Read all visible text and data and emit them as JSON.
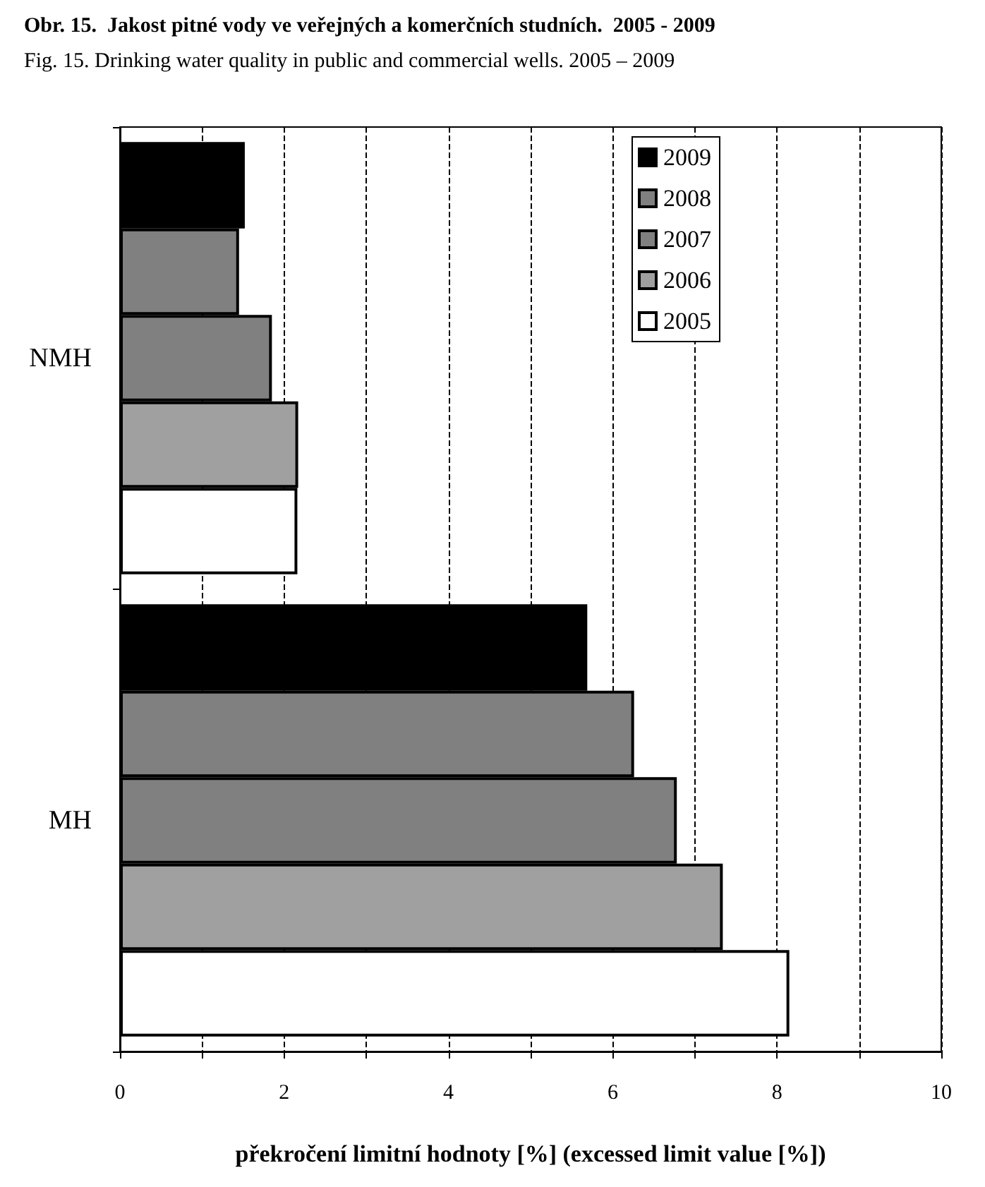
{
  "chart_data": {
    "type": "bar",
    "orientation": "horizontal",
    "title": "Obr. 15.  Jakost pitné vody ve veřejných a komerčních studních.  2005 - 2009",
    "subtitle": "Fig. 15. Drinking water quality in public and commercial wells. 2005 – 2009",
    "xlabel": "překročení limitní hodnoty [%] (excessed limit value [%])",
    "categories": [
      "NMH",
      "MH"
    ],
    "series": [
      {
        "name": "2009",
        "color": "#000000",
        "values": [
          1.52,
          5.69
        ]
      },
      {
        "name": "2008",
        "color": "#808080",
        "values": [
          1.45,
          6.26
        ]
      },
      {
        "name": "2007",
        "color": "#808080",
        "values": [
          1.85,
          6.78
        ]
      },
      {
        "name": "2006",
        "color": "#a0a0a0",
        "values": [
          2.17,
          7.34
        ]
      },
      {
        "name": "2005",
        "color": "#ffffff",
        "values": [
          2.16,
          8.15
        ]
      }
    ],
    "xlim": [
      0,
      10
    ],
    "xticks": [
      0,
      {
        "value": 1,
        "label": null
      },
      2,
      {
        "value": 3,
        "label": null
      },
      4,
      {
        "value": 5,
        "label": null
      },
      6,
      {
        "value": 7,
        "label": null
      },
      8,
      {
        "value": 9,
        "label": null
      },
      10
    ],
    "grid": "x",
    "line_style": "dashed",
    "legend": "top right"
  }
}
